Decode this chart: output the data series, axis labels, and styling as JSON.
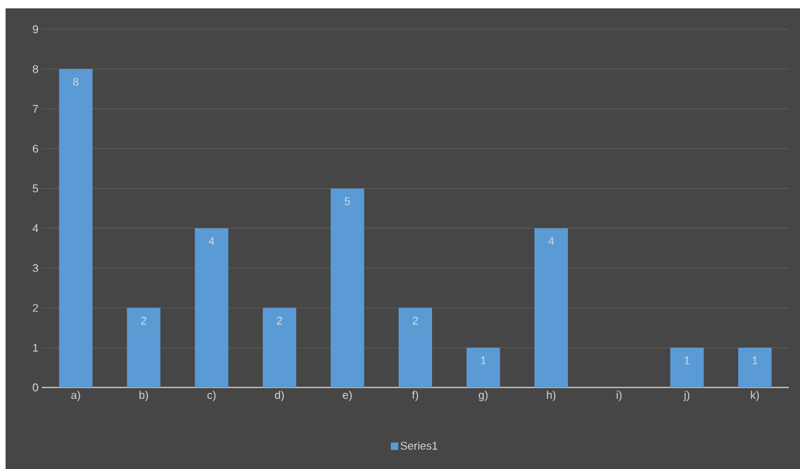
{
  "chart_data": {
    "type": "bar",
    "categories": [
      "a)",
      "b)",
      "c)",
      "d)",
      "e)",
      "f)",
      "g)",
      "h)",
      "i)",
      "j)",
      "k)"
    ],
    "series": [
      {
        "name": "Series1",
        "color": "#5b9bd5",
        "values": [
          8,
          2,
          4,
          2,
          5,
          2,
          1,
          4,
          0,
          1,
          1
        ]
      }
    ],
    "value_labels": [
      "8",
      "2",
      "4",
      "2",
      "5",
      "2",
      "1",
      "4",
      null,
      "1",
      "1"
    ],
    "ylim": [
      0,
      9
    ],
    "yticks": [
      0,
      1,
      2,
      3,
      4,
      5,
      6,
      7,
      8,
      9
    ],
    "grid": "y",
    "legend": "bottom"
  }
}
